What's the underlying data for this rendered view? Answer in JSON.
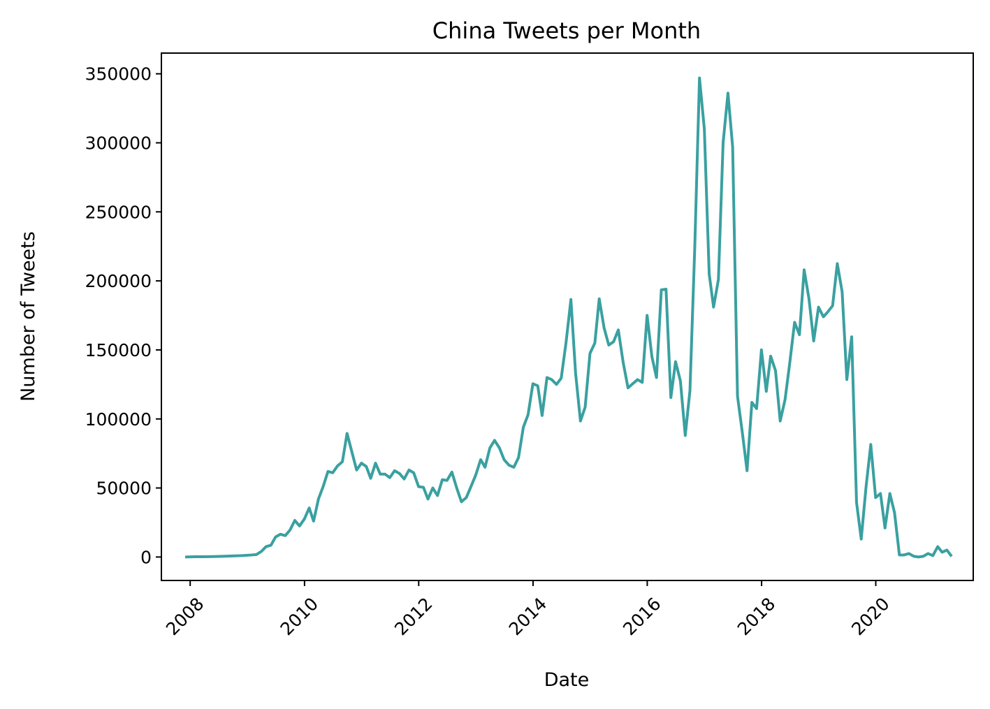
{
  "chart_data": {
    "type": "line",
    "title": "China Tweets per Month",
    "xlabel": "Date",
    "ylabel": "Number of Tweets",
    "x_type": "date",
    "xlim": [
      "2007-07-01",
      "2021-09-15"
    ],
    "ylim": [
      -17000,
      365000
    ],
    "x_ticks": [
      {
        "date": "2008-01-01",
        "label": "2008"
      },
      {
        "date": "2010-01-01",
        "label": "2010"
      },
      {
        "date": "2012-01-01",
        "label": "2012"
      },
      {
        "date": "2014-01-01",
        "label": "2014"
      },
      {
        "date": "2016-01-01",
        "label": "2016"
      },
      {
        "date": "2018-01-01",
        "label": "2018"
      },
      {
        "date": "2020-01-01",
        "label": "2020"
      }
    ],
    "y_ticks": [
      {
        "value": 0,
        "label": "0"
      },
      {
        "value": 50000,
        "label": "50000"
      },
      {
        "value": 100000,
        "label": "100000"
      },
      {
        "value": 150000,
        "label": "150000"
      },
      {
        "value": 200000,
        "label": "200000"
      },
      {
        "value": 250000,
        "label": "250000"
      },
      {
        "value": 300000,
        "label": "300000"
      },
      {
        "value": 350000,
        "label": "350000"
      }
    ],
    "grid": false,
    "legend": false,
    "line_color": "#3aa0a0",
    "series": [
      {
        "x": [
          "2007-11-30",
          "2008-01-31",
          "2008-03-31",
          "2008-05-31",
          "2008-07-31",
          "2008-09-30",
          "2008-11-30",
          "2009-01-31",
          "2009-02-28",
          "2009-03-31",
          "2009-04-30",
          "2009-05-31",
          "2009-06-30",
          "2009-07-31",
          "2009-08-31",
          "2009-09-30",
          "2009-10-31",
          "2009-11-30",
          "2009-12-31",
          "2010-01-31",
          "2010-02-28",
          "2010-03-31",
          "2010-04-30",
          "2010-05-31",
          "2010-06-30",
          "2010-07-31",
          "2010-08-31",
          "2010-09-30",
          "2010-10-31",
          "2010-11-30",
          "2010-12-31",
          "2011-01-31",
          "2011-02-28",
          "2011-03-31",
          "2011-04-30",
          "2011-05-31",
          "2011-06-30",
          "2011-07-31",
          "2011-08-31",
          "2011-09-30",
          "2011-10-31",
          "2011-11-30",
          "2011-12-31",
          "2012-01-31",
          "2012-02-29",
          "2012-03-31",
          "2012-04-30",
          "2012-05-31",
          "2012-06-30",
          "2012-07-31",
          "2012-08-31",
          "2012-09-30",
          "2012-10-31",
          "2012-11-30",
          "2012-12-31",
          "2013-01-31",
          "2013-02-28",
          "2013-03-31",
          "2013-04-30",
          "2013-05-31",
          "2013-06-30",
          "2013-07-31",
          "2013-08-31",
          "2013-09-30",
          "2013-10-31",
          "2013-11-30",
          "2013-12-31",
          "2014-01-31",
          "2014-02-28",
          "2014-03-31",
          "2014-04-30",
          "2014-05-31",
          "2014-06-30",
          "2014-07-31",
          "2014-08-31",
          "2014-09-30",
          "2014-10-31",
          "2014-11-30",
          "2014-12-31",
          "2015-01-31",
          "2015-02-28",
          "2015-03-31",
          "2015-04-30",
          "2015-05-31",
          "2015-06-30",
          "2015-07-31",
          "2015-08-31",
          "2015-09-30",
          "2015-10-31",
          "2015-11-30",
          "2015-12-31",
          "2016-01-31",
          "2016-02-29",
          "2016-03-31",
          "2016-04-30",
          "2016-05-31",
          "2016-06-30",
          "2016-07-31",
          "2016-08-31",
          "2016-09-30",
          "2016-10-31",
          "2016-11-30",
          "2016-12-31",
          "2017-01-31",
          "2017-02-28",
          "2017-03-31",
          "2017-04-30",
          "2017-05-31",
          "2017-06-30",
          "2017-07-31",
          "2017-08-31",
          "2017-09-30",
          "2017-10-31",
          "2017-11-30",
          "2017-12-31",
          "2018-01-31",
          "2018-02-28",
          "2018-03-31",
          "2018-04-30",
          "2018-05-31",
          "2018-06-30",
          "2018-07-31",
          "2018-08-31",
          "2018-09-30",
          "2018-10-31",
          "2018-11-30",
          "2018-12-31",
          "2019-01-31",
          "2019-02-28",
          "2019-03-31",
          "2019-04-30",
          "2019-05-31",
          "2019-06-30",
          "2019-07-31",
          "2019-08-31",
          "2019-09-30",
          "2019-10-31",
          "2019-11-30",
          "2019-12-31",
          "2020-01-31",
          "2020-02-29",
          "2020-03-31",
          "2020-04-30",
          "2020-05-31",
          "2020-06-30",
          "2020-07-31",
          "2020-08-31",
          "2020-09-30",
          "2020-10-31",
          "2020-11-30",
          "2020-12-31",
          "2021-01-31",
          "2021-02-28",
          "2021-03-31",
          "2021-04-30"
        ],
        "y": [
          0,
          200,
          200,
          300,
          500,
          800,
          1000,
          1500,
          1800,
          4000,
          7500,
          8500,
          14500,
          16500,
          15500,
          19500,
          26500,
          22500,
          27500,
          35500,
          26000,
          42000,
          51000,
          62000,
          61000,
          66000,
          69000,
          89500,
          76000,
          63000,
          68000,
          65500,
          57000,
          68000,
          60000,
          60000,
          57500,
          62500,
          60500,
          56500,
          63000,
          61000,
          51000,
          50500,
          42000,
          50000,
          44500,
          56000,
          55500,
          61500,
          50000,
          40000,
          43000,
          51000,
          59500,
          70500,
          65000,
          79000,
          84500,
          79000,
          70500,
          66500,
          65000,
          72000,
          94000,
          103000,
          125500,
          124000,
          102500,
          130000,
          128500,
          125000,
          129500,
          155500,
          186500,
          133000,
          98500,
          108500,
          147500,
          155000,
          187000,
          166000,
          153500,
          156000,
          164500,
          141000,
          122500,
          125500,
          128500,
          126500,
          175000,
          145000,
          130000,
          193500,
          194000,
          115500,
          141500,
          127500,
          88000,
          120500,
          225000,
          347000,
          310000,
          205000,
          181000,
          201000,
          300000,
          336000,
          297000,
          116500,
          90000,
          62500,
          112000,
          107500,
          150000,
          120000,
          145500,
          135000,
          98500,
          114000,
          140500,
          170000,
          161000,
          208000,
          187000,
          156500,
          181000,
          174000,
          177500,
          182000,
          212500,
          192000,
          128500,
          159500,
          39500,
          13000,
          51000,
          81500,
          43000,
          46000,
          21000,
          46000,
          32000,
          1500,
          1500,
          2500,
          500,
          0,
          500,
          2500,
          1000,
          7500,
          3500,
          5000,
          500
        ]
      }
    ]
  }
}
